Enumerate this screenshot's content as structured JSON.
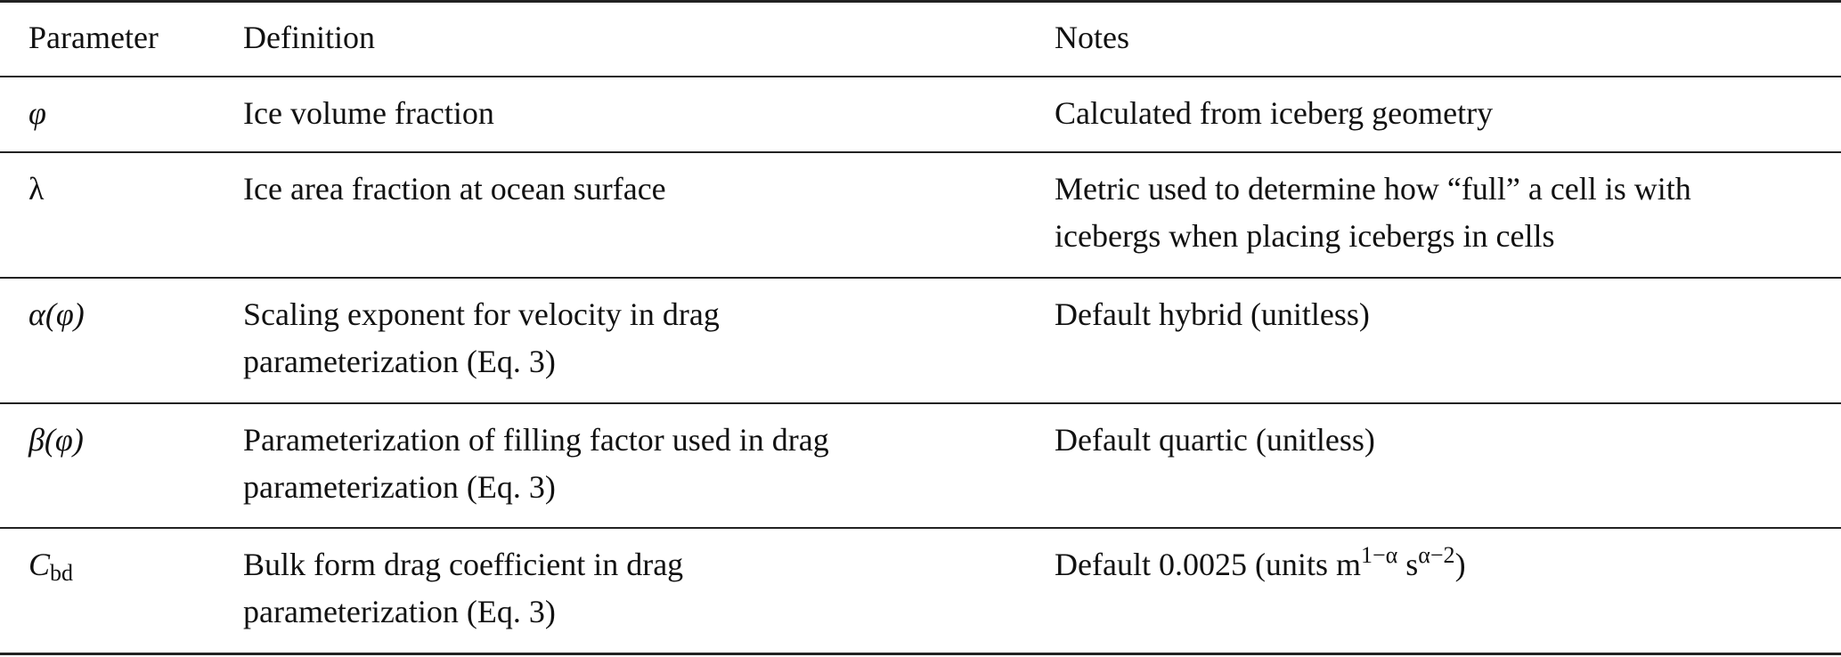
{
  "table": {
    "headers": [
      "Parameter",
      "Definition",
      "Notes"
    ],
    "rows": [
      {
        "symbol": "φ",
        "definition": "Ice volume fraction",
        "notes": "Calculated from iceberg geometry"
      },
      {
        "symbol": "λ",
        "definition": "Ice area fraction at ocean surface",
        "notes": "Metric used to determine how “full” a cell is with icebergs when placing icebergs in cells"
      },
      {
        "symbol": "α(φ)",
        "definition": "Scaling exponent for velocity in drag parameterization (Eq. 3)",
        "notes": "Default hybrid (unitless)"
      },
      {
        "symbol": "β(φ)",
        "definition": "Parameterization of filling factor used in drag parameterization (Eq. 3)",
        "notes": "Default quartic (unitless)"
      },
      {
        "symbol_base": "C",
        "symbol_sub": "bd",
        "definition": "Bulk form drag coefficient in drag parameterization (Eq. 3)",
        "notes_prefix": "Default 0.0025 (units m",
        "notes_sup1": "1−α",
        "notes_mid": " s",
        "notes_sup2": "α−2",
        "notes_suffix": ")"
      }
    ]
  }
}
